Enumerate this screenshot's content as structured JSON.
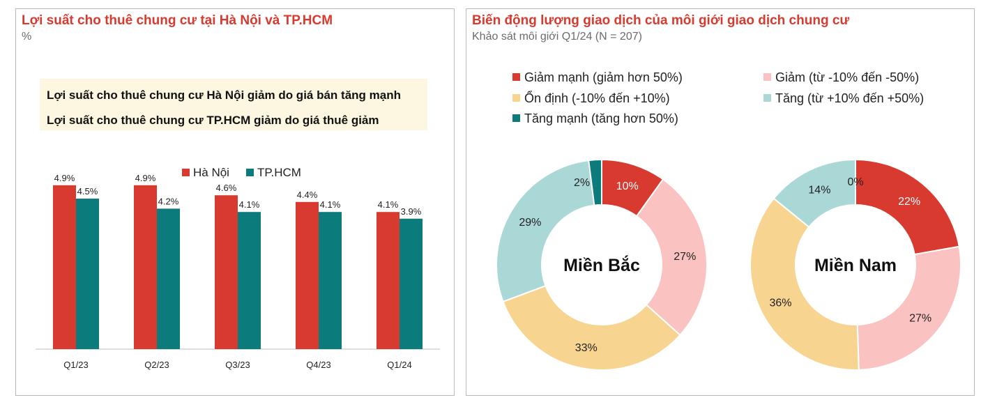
{
  "left": {
    "title": "Lợi suất cho thuê chung cư tại Hà Nội và TP.HCM",
    "unit": "%",
    "notes": [
      "Lợi suất cho thuê chung cư Hà Nội giảm do giá bán tăng mạnh",
      "Lợi suất cho thuê chung cư TP.HCM giảm do giá thuê giảm"
    ]
  },
  "right": {
    "title": "Biến động lượng giao dịch của môi giới giao dịch chung cư",
    "subtitle": "Khảo sát môi giới Q1/24 (N = 207)"
  },
  "colors": {
    "hanoi": "#d93a2f",
    "hcm": "#0c7b7b",
    "giam_manh": "#d93a2f",
    "giam": "#fac3c1",
    "on_dinh": "#f7d48f",
    "tang": "#a9d8d7",
    "tang_manh": "#0c7b7b"
  },
  "chart_data": [
    {
      "type": "bar",
      "categories": [
        "Q1/23",
        "Q2/23",
        "Q3/23",
        "Q4/23",
        "Q1/24"
      ],
      "series": [
        {
          "name": "Hà Nội",
          "values": [
            4.9,
            4.9,
            4.6,
            4.4,
            4.1
          ],
          "labels": [
            "4.9%",
            "4.9%",
            "4.6%",
            "4.4%",
            "4.1%"
          ]
        },
        {
          "name": "TP.HCM",
          "values": [
            4.5,
            4.2,
            4.1,
            4.1,
            3.9
          ],
          "labels": [
            "4.5%",
            "4.2%",
            "4.1%",
            "4.1%",
            "3.9%"
          ]
        }
      ],
      "ylim": [
        0,
        5
      ],
      "grid": false,
      "legend": "top-center"
    },
    {
      "type": "pie",
      "legend": [
        {
          "key": "giam_manh",
          "label": "Giảm mạnh (giảm hơn 50%)"
        },
        {
          "key": "giam",
          "label": "Giảm (từ -10% đến -50%)"
        },
        {
          "key": "on_dinh",
          "label": "Ổn định (-10% đến +10%)"
        },
        {
          "key": "tang",
          "label": "Tăng (từ +10% đến +50%)"
        },
        {
          "key": "tang_manh",
          "label": "Tăng mạnh (tăng hơn 50%)"
        }
      ],
      "donuts": [
        {
          "name": "Miền Bắc",
          "values": [
            10,
            27,
            33,
            29,
            2
          ],
          "labels": [
            "10%",
            "27%",
            "33%",
            "29%",
            "2%"
          ]
        },
        {
          "name": "Miền Nam",
          "values": [
            22,
            27,
            36,
            14,
            0
          ],
          "labels": [
            "22%",
            "27%",
            "36%",
            "14%",
            "0%"
          ]
        }
      ]
    }
  ]
}
